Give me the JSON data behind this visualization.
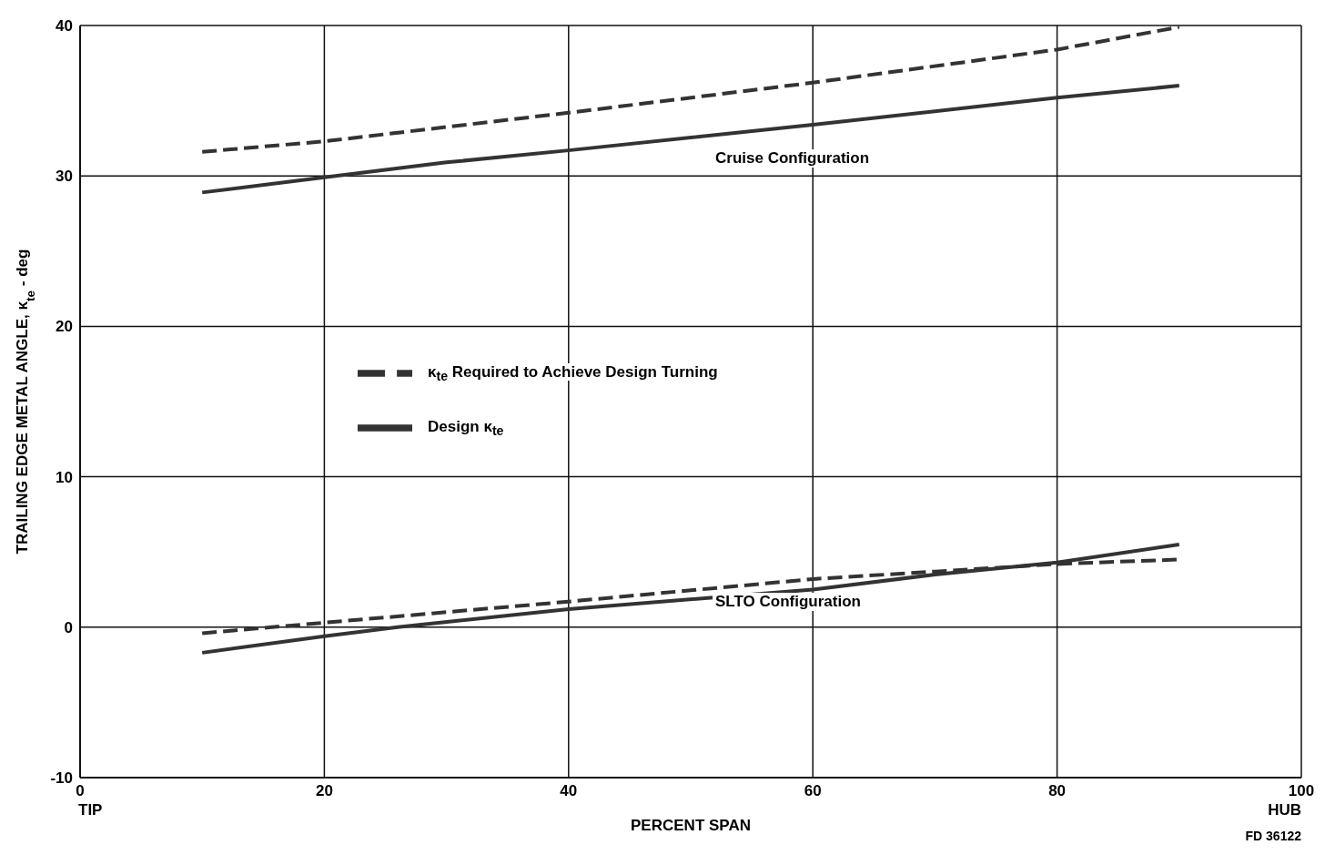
{
  "chart_data": {
    "type": "line",
    "xlabel": "PERCENT SPAN",
    "ylabel": "TRAILING EDGE METAL ANGLE, κ$_{te}$ - deg",
    "xlim": [
      0,
      100
    ],
    "xticks": [
      0,
      20,
      40,
      60,
      80,
      100
    ],
    "ylim": [
      -10,
      40
    ],
    "yticks": [
      -10,
      0,
      10,
      20,
      30,
      40
    ],
    "grid": true,
    "legend": "left",
    "marker": "none",
    "series": [
      {
        "name": "κ$_{te}$ Required to Achieve Design Turning",
        "color": "#333333",
        "line_style": "dashed",
        "x": [
          10,
          20,
          40,
          60,
          80,
          90
        ],
        "values": [
          31.6,
          32.3,
          34.2,
          36.2,
          38.4,
          39.9
        ]
      },
      {
        "name": "Design κ$_{te}$",
        "color": "#333333",
        "line_style": "solid",
        "x": [
          10,
          20,
          30,
          40,
          60,
          80,
          90
        ],
        "values": [
          28.9,
          29.9,
          30.9,
          31.7,
          33.4,
          35.2,
          36.0
        ]
      },
      {
        "color": "#333333",
        "line_style": "dashed",
        "x": [
          10,
          20,
          40,
          60,
          70,
          80,
          90
        ],
        "values": [
          -0.4,
          0.3,
          1.7,
          3.2,
          3.7,
          4.2,
          4.5
        ]
      },
      {
        "color": "#333333",
        "line_style": "solid",
        "x": [
          10,
          20,
          26,
          40,
          60,
          70,
          80,
          90
        ],
        "values": [
          -1.7,
          -0.6,
          0,
          1.2,
          2.5,
          3.5,
          4.3,
          5.5
        ]
      }
    ],
    "annotations": [
      "Cruise Configuration",
      "SLTO Configuration",
      "TIP",
      "HUB",
      "FD 36122"
    ]
  }
}
